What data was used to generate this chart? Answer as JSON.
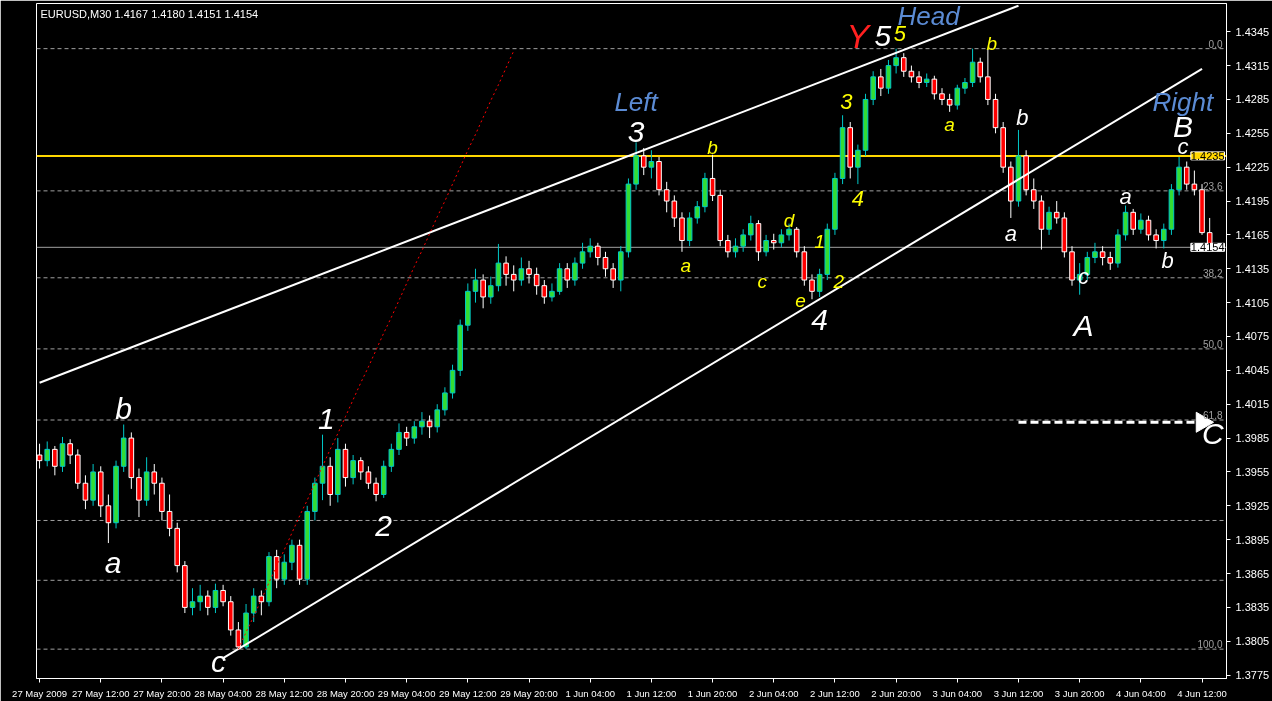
{
  "chart_data": {
    "type": "candlestick",
    "title": "EURUSD,M30  1.4167 1.4180 1.4151 1.4154",
    "categories": [
      "27 May 2009",
      null,
      null,
      null,
      null,
      null,
      null,
      null,
      "27 May 12:00",
      null,
      null,
      null,
      null,
      null,
      null,
      null,
      "27 May 20:00",
      null,
      null,
      null,
      null,
      null,
      null,
      null,
      "28 May 04:00",
      null,
      null,
      null,
      null,
      null,
      null,
      null,
      "28 May 12:00",
      null,
      null,
      null,
      null,
      null,
      null,
      null,
      "28 May 20:00",
      null,
      null,
      null,
      null,
      null,
      null,
      null,
      "29 May 04:00",
      null,
      null,
      null,
      null,
      null,
      null,
      null,
      "29 May 12:00",
      null,
      null,
      null,
      null,
      null,
      null,
      null,
      "29 May 20:00",
      null,
      null,
      null,
      null,
      null,
      null,
      null,
      "1 Jun 04:00",
      null,
      null,
      null,
      null,
      null,
      null,
      null,
      "1 Jun 12:00",
      null,
      null,
      null,
      null,
      null,
      null,
      null,
      "1 Jun 20:00",
      null,
      null,
      null,
      null,
      null,
      null,
      null,
      "2 Jun 04:00",
      null,
      null,
      null,
      null,
      null,
      null,
      null,
      "2 Jun 12:00",
      null,
      null,
      null,
      null,
      null,
      null,
      null,
      "2 Jun 20:00",
      null,
      null,
      null,
      null,
      null,
      null,
      null,
      "3 Jun 04:00",
      null,
      null,
      null,
      null,
      null,
      null,
      null,
      "3 Jun 12:00",
      null,
      null,
      null,
      null,
      null,
      null,
      null,
      "3 Jun 20:00",
      null,
      null,
      null,
      null,
      null,
      null,
      null,
      "4 Jun 04:00",
      null,
      null,
      null,
      null,
      null,
      null,
      null,
      "4 Jun 12:00",
      null
    ],
    "ohlc": [
      [
        1.397,
        1.398,
        1.3958,
        1.3965
      ],
      [
        1.3965,
        1.3982,
        1.396,
        1.3975
      ],
      [
        1.3975,
        1.3978,
        1.3952,
        1.396
      ],
      [
        1.396,
        1.3986,
        1.3955,
        1.398
      ],
      [
        1.398,
        1.3984,
        1.3962,
        1.397
      ],
      [
        1.397,
        1.3975,
        1.394,
        1.3945
      ],
      [
        1.3945,
        1.3952,
        1.3922,
        1.393
      ],
      [
        1.393,
        1.3962,
        1.3925,
        1.3955
      ],
      [
        1.3955,
        1.396,
        1.3915,
        1.3925
      ],
      [
        1.3925,
        1.3935,
        1.3892,
        1.391
      ],
      [
        1.391,
        1.3965,
        1.3905,
        1.396
      ],
      [
        1.396,
        1.3997,
        1.3955,
        1.3985
      ],
      [
        1.3985,
        1.399,
        1.394,
        1.395
      ],
      [
        1.395,
        1.3958,
        1.3915,
        1.393
      ],
      [
        1.393,
        1.3968,
        1.3925,
        1.3955
      ],
      [
        1.3955,
        1.3962,
        1.3935,
        1.3945
      ],
      [
        1.3945,
        1.395,
        1.3912,
        1.392
      ],
      [
        1.392,
        1.3935,
        1.3898,
        1.3905
      ],
      [
        1.3905,
        1.391,
        1.3866,
        1.3872
      ],
      [
        1.3872,
        1.3876,
        1.383,
        1.3835
      ],
      [
        1.3835,
        1.3852,
        1.3828,
        1.384
      ],
      [
        1.384,
        1.3855,
        1.3832,
        1.3845
      ],
      [
        1.3845,
        1.385,
        1.3828,
        1.3835
      ],
      [
        1.3835,
        1.3856,
        1.383,
        1.385
      ],
      [
        1.385,
        1.3855,
        1.3836,
        1.384
      ],
      [
        1.384,
        1.3845,
        1.381,
        1.3815
      ],
      [
        1.3815,
        1.3822,
        1.3798,
        1.38
      ],
      [
        1.38,
        1.3838,
        1.3798,
        1.383
      ],
      [
        1.383,
        1.3852,
        1.3822,
        1.3845
      ],
      [
        1.3845,
        1.385,
        1.3828,
        1.384
      ],
      [
        1.384,
        1.3884,
        1.3836,
        1.388
      ],
      [
        1.388,
        1.3886,
        1.3852,
        1.386
      ],
      [
        1.386,
        1.3882,
        1.3855,
        1.3875
      ],
      [
        1.3875,
        1.3895,
        1.3868,
        1.389
      ],
      [
        1.389,
        1.3895,
        1.3855,
        1.386
      ],
      [
        1.386,
        1.3925,
        1.3855,
        1.392
      ],
      [
        1.392,
        1.395,
        1.3912,
        1.3945
      ],
      [
        1.3945,
        1.3988,
        1.393,
        1.396
      ],
      [
        1.396,
        1.3968,
        1.3925,
        1.3935
      ],
      [
        1.3935,
        1.3985,
        1.3928,
        1.3975
      ],
      [
        1.3975,
        1.398,
        1.3942,
        1.395
      ],
      [
        1.395,
        1.397,
        1.3944,
        1.3965
      ],
      [
        1.3965,
        1.3968,
        1.3948,
        1.3955
      ],
      [
        1.3955,
        1.396,
        1.394,
        1.3945
      ],
      [
        1.3945,
        1.395,
        1.3929,
        1.3935
      ],
      [
        1.3935,
        1.3965,
        1.3932,
        1.396
      ],
      [
        1.396,
        1.398,
        1.3955,
        1.3975
      ],
      [
        1.3975,
        1.3998,
        1.397,
        1.399
      ],
      [
        1.399,
        1.3995,
        1.3978,
        1.3985
      ],
      [
        1.3985,
        1.4,
        1.398,
        1.3995
      ],
      [
        1.3995,
        1.4008,
        1.3988,
        1.4
      ],
      [
        1.4,
        1.4005,
        1.3985,
        1.3995
      ],
      [
        1.3995,
        1.4015,
        1.399,
        1.401
      ],
      [
        1.401,
        1.403,
        1.4005,
        1.4025
      ],
      [
        1.4025,
        1.405,
        1.402,
        1.4045
      ],
      [
        1.4045,
        1.409,
        1.404,
        1.4085
      ],
      [
        1.4085,
        1.4122,
        1.408,
        1.4115
      ],
      [
        1.4115,
        1.4135,
        1.4105,
        1.4125
      ],
      [
        1.4125,
        1.413,
        1.41,
        1.411
      ],
      [
        1.411,
        1.4128,
        1.4104,
        1.412
      ],
      [
        1.412,
        1.4157,
        1.4115,
        1.414
      ],
      [
        1.414,
        1.4146,
        1.412,
        1.413
      ],
      [
        1.413,
        1.4138,
        1.4115,
        1.4125
      ],
      [
        1.4125,
        1.4145,
        1.412,
        1.4135
      ],
      [
        1.4135,
        1.4142,
        1.4122,
        1.413
      ],
      [
        1.413,
        1.4136,
        1.4112,
        1.412
      ],
      [
        1.412,
        1.4125,
        1.4104,
        1.411
      ],
      [
        1.411,
        1.4122,
        1.4106,
        1.4115
      ],
      [
        1.4115,
        1.414,
        1.4112,
        1.4135
      ],
      [
        1.4135,
        1.414,
        1.4118,
        1.4125
      ],
      [
        1.4125,
        1.4145,
        1.412,
        1.414
      ],
      [
        1.414,
        1.4158,
        1.4135,
        1.415
      ],
      [
        1.415,
        1.4162,
        1.4145,
        1.4155
      ],
      [
        1.4155,
        1.4158,
        1.4138,
        1.4145
      ],
      [
        1.4145,
        1.415,
        1.4128,
        1.4135
      ],
      [
        1.4135,
        1.414,
        1.4118,
        1.4125
      ],
      [
        1.4125,
        1.4155,
        1.4115,
        1.415
      ],
      [
        1.415,
        1.4215,
        1.4145,
        1.421
      ],
      [
        1.421,
        1.4247,
        1.4205,
        1.4235
      ],
      [
        1.4235,
        1.4242,
        1.4218,
        1.4225
      ],
      [
        1.4225,
        1.424,
        1.4215,
        1.423
      ],
      [
        1.423,
        1.4234,
        1.42,
        1.4205
      ],
      [
        1.4205,
        1.4212,
        1.4185,
        1.4195
      ],
      [
        1.4195,
        1.42,
        1.4172,
        1.418
      ],
      [
        1.418,
        1.4185,
        1.415,
        1.416
      ],
      [
        1.416,
        1.4185,
        1.4155,
        1.418
      ],
      [
        1.418,
        1.4195,
        1.4175,
        1.419
      ],
      [
        1.419,
        1.422,
        1.4185,
        1.4215
      ],
      [
        1.4215,
        1.4236,
        1.4195,
        1.42
      ],
      [
        1.42,
        1.4205,
        1.4155,
        1.416
      ],
      [
        1.416,
        1.4165,
        1.4145,
        1.415
      ],
      [
        1.415,
        1.4162,
        1.4145,
        1.4155
      ],
      [
        1.4155,
        1.417,
        1.415,
        1.4165
      ],
      [
        1.4165,
        1.4182,
        1.416,
        1.4175
      ],
      [
        1.4175,
        1.4178,
        1.4142,
        1.415
      ],
      [
        1.415,
        1.4165,
        1.4146,
        1.416
      ],
      [
        1.416,
        1.4166,
        1.4152,
        1.4158
      ],
      [
        1.4158,
        1.417,
        1.4154,
        1.4165
      ],
      [
        1.4165,
        1.4175,
        1.416,
        1.417
      ],
      [
        1.417,
        1.4172,
        1.4145,
        1.415
      ],
      [
        1.415,
        1.4155,
        1.412,
        1.4125
      ],
      [
        1.4125,
        1.413,
        1.4108,
        1.4115
      ],
      [
        1.4115,
        1.4135,
        1.411,
        1.413
      ],
      [
        1.413,
        1.4175,
        1.4125,
        1.417
      ],
      [
        1.417,
        1.422,
        1.4165,
        1.4215
      ],
      [
        1.4215,
        1.4271,
        1.421,
        1.426
      ],
      [
        1.426,
        1.4265,
        1.4215,
        1.4225
      ],
      [
        1.4225,
        1.4245,
        1.421,
        1.424
      ],
      [
        1.424,
        1.429,
        1.4235,
        1.4285
      ],
      [
        1.4285,
        1.431,
        1.428,
        1.4305
      ],
      [
        1.4305,
        1.4312,
        1.4288,
        1.4295
      ],
      [
        1.4295,
        1.432,
        1.429,
        1.4315
      ],
      [
        1.4315,
        1.433,
        1.4308,
        1.4322
      ],
      [
        1.4322,
        1.4326,
        1.4305,
        1.431
      ],
      [
        1.431,
        1.4315,
        1.43,
        1.4305
      ],
      [
        1.4305,
        1.431,
        1.4295,
        1.43
      ],
      [
        1.43,
        1.4308,
        1.4296,
        1.4303
      ],
      [
        1.4303,
        1.4306,
        1.4285,
        1.429
      ],
      [
        1.429,
        1.4295,
        1.428,
        1.4285
      ],
      [
        1.4285,
        1.429,
        1.4274,
        1.428
      ],
      [
        1.428,
        1.4298,
        1.4276,
        1.4295
      ],
      [
        1.4295,
        1.4304,
        1.429,
        1.43
      ],
      [
        1.43,
        1.433,
        1.4296,
        1.4318
      ],
      [
        1.4318,
        1.4322,
        1.43,
        1.4305
      ],
      [
        1.4305,
        1.433,
        1.428,
        1.4285
      ],
      [
        1.4285,
        1.429,
        1.4255,
        1.426
      ],
      [
        1.426,
        1.4265,
        1.422,
        1.4225
      ],
      [
        1.4225,
        1.423,
        1.418,
        1.4195
      ],
      [
        1.4195,
        1.4258,
        1.419,
        1.4235
      ],
      [
        1.4235,
        1.424,
        1.42,
        1.4205
      ],
      [
        1.4205,
        1.4215,
        1.4188,
        1.4195
      ],
      [
        1.4195,
        1.42,
        1.4152,
        1.417
      ],
      [
        1.417,
        1.419,
        1.4165,
        1.4185
      ],
      [
        1.4185,
        1.4195,
        1.4175,
        1.418
      ],
      [
        1.418,
        1.4185,
        1.4145,
        1.415
      ],
      [
        1.415,
        1.4155,
        1.412,
        1.4125
      ],
      [
        1.4125,
        1.414,
        1.4112,
        1.413
      ],
      [
        1.413,
        1.415,
        1.4125,
        1.4145
      ],
      [
        1.4145,
        1.4158,
        1.414,
        1.415
      ],
      [
        1.415,
        1.4155,
        1.4138,
        1.4145
      ],
      [
        1.4145,
        1.415,
        1.4134,
        1.414
      ],
      [
        1.414,
        1.417,
        1.4136,
        1.4165
      ],
      [
        1.4165,
        1.4191,
        1.416,
        1.4185
      ],
      [
        1.4185,
        1.4188,
        1.4165,
        1.417
      ],
      [
        1.417,
        1.4184,
        1.4166,
        1.4178
      ],
      [
        1.4178,
        1.4182,
        1.416,
        1.4165
      ],
      [
        1.4165,
        1.417,
        1.4153,
        1.416
      ],
      [
        1.416,
        1.4175,
        1.4153,
        1.417
      ],
      [
        1.417,
        1.421,
        1.4165,
        1.4205
      ],
      [
        1.4205,
        1.4234,
        1.42,
        1.4225
      ],
      [
        1.4225,
        1.423,
        1.4205,
        1.421
      ],
      [
        1.421,
        1.4222,
        1.42,
        1.4205
      ],
      [
        1.4205,
        1.421,
        1.4165,
        1.4167
      ],
      [
        1.4167,
        1.418,
        1.4151,
        1.4154
      ]
    ],
    "series": [
      {
        "type": "line",
        "color": "#ffffff",
        "x": [
          "27 May 2009",
          "3 Jun 12:00"
        ],
        "values": [
          1.4034,
          1.4368
        ]
      },
      {
        "type": "line",
        "color": "#ffffff",
        "x": [
          "28 May 04:00",
          "4 Jun 12:00"
        ],
        "values": [
          1.379,
          1.4312
        ]
      },
      {
        "type": "line",
        "color": "#ff0000",
        "line_style": "dotted",
        "values": [
          null,
          null,
          null,
          null,
          null,
          null,
          null,
          null,
          null,
          null,
          null,
          null,
          null,
          null,
          null,
          null,
          null,
          null,
          null,
          null,
          null,
          null,
          null,
          null,
          null,
          null,
          1.3798,
          1.3813,
          1.3827,
          1.3842,
          1.3857,
          1.3872,
          1.3886,
          1.3901,
          1.3916,
          1.393,
          1.3945,
          1.396,
          1.3975,
          1.3989,
          1.4004,
          1.4019,
          1.4034,
          1.4048,
          1.4063,
          1.4078,
          1.4092,
          1.4107,
          1.4122,
          1.4137,
          1.4151,
          1.4166,
          1.4181,
          1.4195,
          1.421,
          1.4225,
          1.424,
          1.4254,
          1.4269,
          1.4284,
          1.4298,
          1.4313,
          1.4328,
          null,
          null,
          null,
          null,
          null,
          null,
          null,
          null,
          null,
          null,
          null,
          null,
          null,
          null,
          null,
          null,
          null,
          null,
          null,
          null,
          null,
          null,
          null,
          null,
          null,
          null,
          null,
          null,
          null,
          null,
          null,
          null,
          null,
          null,
          null,
          null,
          null,
          null,
          null,
          null,
          null,
          null,
          null,
          null,
          null,
          null,
          null,
          null,
          null,
          null,
          null,
          null,
          null,
          null,
          null,
          null,
          null,
          null,
          null,
          null,
          null,
          null,
          null,
          null,
          null,
          null,
          null,
          null,
          null,
          null,
          null,
          null,
          null,
          null,
          null,
          null,
          null,
          null,
          null,
          null,
          null,
          null,
          null,
          null,
          null,
          null,
          null,
          null,
          null,
          null,
          null
        ]
      },
      {
        "type": "line",
        "color": "#ffffff",
        "line_style": "dashed",
        "x": [
          "3 Jun 12:00",
          "4 Jun 12:00"
        ],
        "values": [
          1.3999,
          1.3999
        ]
      }
    ],
    "ylim": [
      1.3772,
      1.437
    ],
    "yticks": [
      1.3775,
      1.3805,
      1.3835,
      1.3865,
      1.3895,
      1.3925,
      1.3955,
      1.3985,
      1.4015,
      1.4045,
      1.4075,
      1.4105,
      1.4135,
      1.4165,
      1.4195,
      1.4225,
      1.4255,
      1.4285,
      1.4315,
      1.4345
    ],
    "ref_lines": [
      {
        "axis": "y",
        "value": 1.4235,
        "label": "1.4235",
        "color": "#ffd700",
        "line_style": "solid"
      },
      {
        "axis": "y",
        "value": 1.4154,
        "label": "1.4154",
        "color": "#a0a0a0",
        "line_style": "solid"
      },
      {
        "axis": "y",
        "value": 1.433,
        "color": "#a0a0a0",
        "line_style": "dashed"
      },
      {
        "axis": "y",
        "value": 1.4204,
        "color": "#a0a0a0",
        "line_style": "dashed"
      },
      {
        "axis": "y",
        "value": 1.4127,
        "color": "#a0a0a0",
        "line_style": "dashed"
      },
      {
        "axis": "y",
        "value": 1.4064,
        "color": "#a0a0a0",
        "line_style": "dashed"
      },
      {
        "axis": "y",
        "value": 1.4001,
        "color": "#a0a0a0",
        "line_style": "dashed"
      },
      {
        "axis": "y",
        "value": 1.3912,
        "color": "#a0a0a0",
        "line_style": "dashed"
      },
      {
        "axis": "y",
        "value": 1.3859,
        "color": "#a0a0a0",
        "line_style": "dashed"
      },
      {
        "axis": "y",
        "value": 1.3798,
        "color": "#a0a0a0",
        "line_style": "dashed"
      }
    ],
    "annotations": [
      "a",
      "b",
      "c",
      "1",
      "2",
      "Left",
      "3",
      "a",
      "b",
      "c",
      "d",
      "e",
      "1",
      "4",
      "2",
      "3",
      "4",
      "Y",
      "5",
      "5",
      "Head",
      "a",
      "b",
      "a",
      "b",
      "c",
      "A",
      "a",
      "b",
      "Right",
      "B",
      "c",
      "C",
      {
        "text": "0.0",
        "y": 1.433
      },
      {
        "text": "23.6",
        "y": 1.4204
      },
      {
        "text": "38.2",
        "y": 1.4127
      },
      {
        "text": "50.0",
        "y": 1.4064
      },
      {
        "text": "61.8",
        "y": 1.4001
      },
      {
        "text": "100.0",
        "y": 1.3798
      }
    ],
    "grid": false
  }
}
